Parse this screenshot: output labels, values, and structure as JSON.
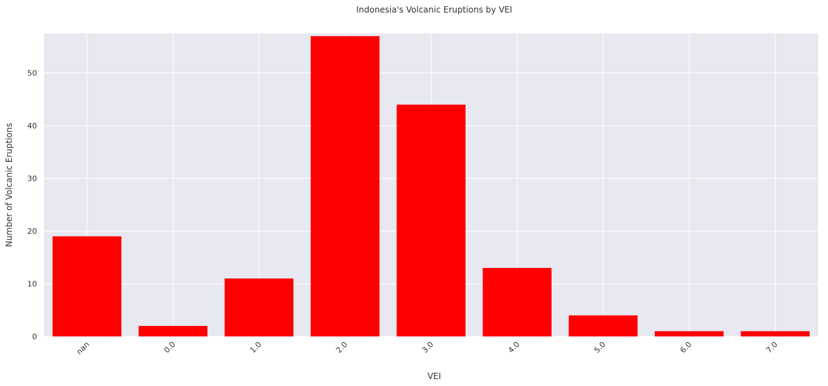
{
  "chart_data": {
    "type": "bar",
    "title": "Indonesia's Volcanic Eruptions by VEI",
    "xlabel": "VEI",
    "ylabel": "Number of Volcanic Eruptions",
    "categories": [
      "nan",
      "0.0",
      "1.0",
      "2.0",
      "3.0",
      "4.0",
      "5.0",
      "6.0",
      "7.0"
    ],
    "values": [
      19,
      2,
      11,
      57,
      44,
      13,
      4,
      1,
      1
    ],
    "ylim": [
      0,
      57.5
    ],
    "yticks": [
      0,
      10,
      20,
      30,
      40,
      50
    ],
    "bar_color": "#ff0000",
    "plot_background": "#e8e8f0",
    "grid_color": "#ffffff",
    "grid": true,
    "xtick_rotation": "45 degrees"
  }
}
